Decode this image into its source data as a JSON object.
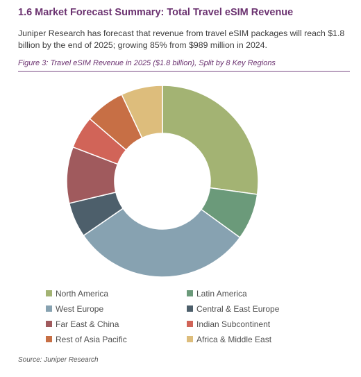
{
  "section_heading": "1.6 Market Forecast Summary: Total Travel eSIM Revenue",
  "intro_text": "Juniper Research has forecast that revenue from travel eSIM packages will reach $1.8 billion by the end of 2025; growing 85% from $989 million in 2024.",
  "figure_caption": "Figure 3: Travel eSIM Revenue in 2025 ($1.8 billion), Split by 8 Key Regions",
  "source": "Source: Juniper Research",
  "chart_data": {
    "type": "pie",
    "donut": true,
    "title": "",
    "start": "12 o'clock, clockwise",
    "legend_position": "bottom",
    "categories": [
      "North America",
      "Latin America",
      "West Europe",
      "Central & East Europe",
      "Far East & China",
      "Indian Subcontinent",
      "Rest of Asia Pacific",
      "Africa & Middle East"
    ],
    "values": [
      0.272,
      0.078,
      0.304,
      0.059,
      0.095,
      0.055,
      0.067,
      0.07
    ],
    "colors": [
      "#a3b373",
      "#6b9a7a",
      "#87a2b1",
      "#4d5f6b",
      "#a05a5d",
      "#d16458",
      "#c76f45",
      "#ddbd7c"
    ]
  }
}
